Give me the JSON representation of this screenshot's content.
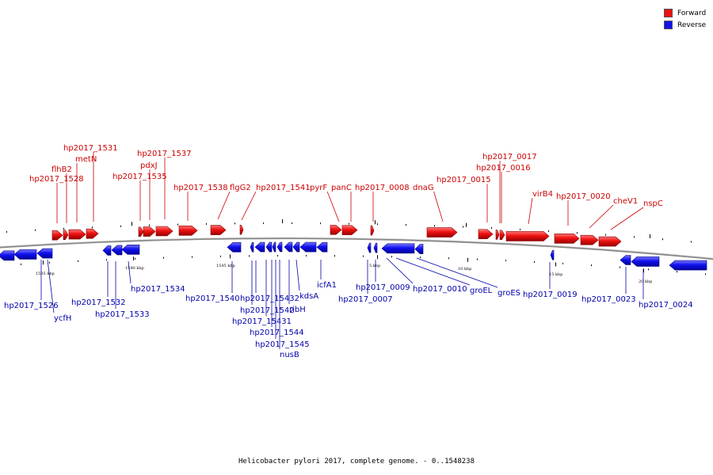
{
  "legend": [
    {
      "label": "Forward",
      "color": "#ee1111"
    },
    {
      "label": "Reverse",
      "color": "#1111ee"
    }
  ],
  "caption": "Helicobacter pylori 2017, complete genome. - 0..1548238",
  "colors": {
    "forward": "#ee1111",
    "forward_dark": "#a00000",
    "reverse": "#1111ee",
    "reverse_dark": "#0000a0",
    "backbone": "#777777",
    "forward_text": "#cc0000",
    "reverse_text": "#0000aa"
  },
  "kbp_labels": [
    "1535 kbp",
    "1540 kbp",
    "1545 kbp",
    "5 kbp",
    "10 kbp",
    "15 kbp",
    "20 kbp"
  ],
  "forward_labels": [
    "hp2017_1531",
    "metN",
    "flhB2",
    "hp2017_1528",
    "hp2017_1537",
    "pdxJ",
    "hp2017_1535",
    "hp2017_1538",
    "flgG2",
    "hp2017_1541",
    "pyrF",
    "panC",
    "hp2017_0008",
    "dnaG",
    "hp2017_0015",
    "hp2017_0017",
    "hp2017_0016",
    "virB4",
    "hp2017_0020",
    "cheV1",
    "nspC"
  ],
  "reverse_labels": [
    "hp2017_1526",
    "ycfH",
    "hp2017_1532",
    "hp2017_1533",
    "hp2017_1534",
    "hp2017_1540",
    "hp2017_1542",
    "hp2017_15432",
    "hp2017_15431",
    "hp2017_1544",
    "hp2017_1545",
    "nusB",
    "ribH",
    "kdsA",
    "icfA1",
    "hp2017_0007",
    "hp2017_0009",
    "hp2017_0010",
    "groEL",
    "groES",
    "hp2017_0019",
    "hp2017_0023",
    "hp2017_0024"
  ]
}
